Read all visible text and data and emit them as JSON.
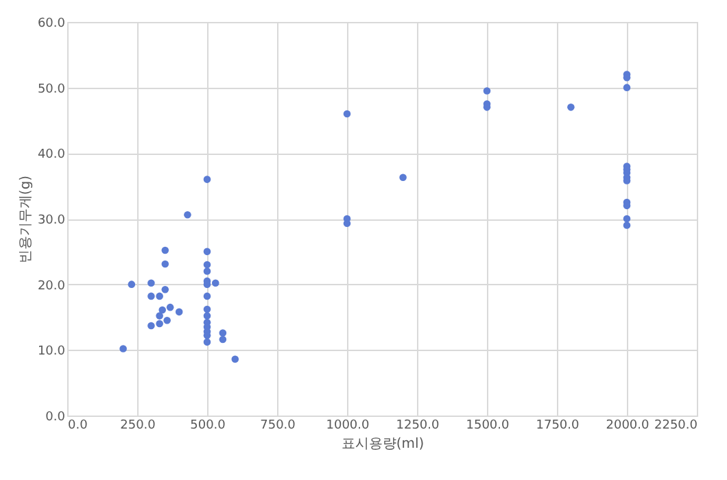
{
  "chart_data": {
    "type": "scatter",
    "xlabel": "표시용량(ml)",
    "ylabel": "빈용기무게(g)",
    "x": [
      200,
      230,
      300,
      300,
      300,
      330,
      330,
      330,
      340,
      350,
      350,
      350,
      357,
      368,
      400,
      430,
      500,
      500,
      500,
      500,
      500,
      500,
      500,
      500,
      500,
      500,
      500,
      500,
      500,
      500,
      530,
      556,
      556,
      600,
      1000,
      1000,
      1000,
      1200,
      1500,
      1500,
      1500,
      1800,
      2000,
      2000,
      2000,
      2000,
      2000,
      2000,
      2000,
      2000,
      2000,
      2000,
      2000,
      2000
    ],
    "series": [
      {
        "color": "#5a7bd4",
        "values": [
          10.2,
          20,
          20.2,
          18.2,
          13.7,
          18.2,
          15.2,
          14,
          16.1,
          25.2,
          23.1,
          19.2,
          14.5,
          16.5,
          15.8,
          30.6,
          36,
          25,
          23,
          22,
          20.5,
          20,
          18.2,
          16.2,
          15.2,
          14.2,
          13.5,
          12.8,
          12.2,
          11.2,
          20.2,
          12.6,
          11.6,
          8.6,
          46,
          30,
          29.3,
          36.3,
          49.5,
          47.5,
          47,
          47,
          52,
          51.5,
          50,
          38,
          37.5,
          37,
          36.3,
          35.8,
          32.5,
          32,
          30,
          29
        ]
      }
    ],
    "xlim": [
      0,
      2250
    ],
    "xticks": [
      {
        "value": 0,
        "label": "0.0"
      },
      {
        "value": 250,
        "label": "250.0"
      },
      {
        "value": 500,
        "label": "500.0"
      },
      {
        "value": 750,
        "label": "750.0"
      },
      {
        "value": 1000,
        "label": "1000.0"
      },
      {
        "value": 1250,
        "label": "1250.0"
      },
      {
        "value": 1500,
        "label": "1500.0"
      },
      {
        "value": 1750,
        "label": "1750.0"
      },
      {
        "value": 2000,
        "label": "2000.0"
      },
      {
        "value": 2250,
        "label": "2250.0"
      }
    ],
    "ylim": [
      0,
      60
    ],
    "yticks": [
      {
        "value": 0,
        "label": "0.0"
      },
      {
        "value": 10,
        "label": "10.0"
      },
      {
        "value": 20,
        "label": "20.0"
      },
      {
        "value": 30,
        "label": "30.0"
      },
      {
        "value": 40,
        "label": "40.0"
      },
      {
        "value": 50,
        "label": "50.0"
      },
      {
        "value": 60,
        "label": "60.0"
      }
    ],
    "grid": true,
    "marker": "circle",
    "legend": false
  }
}
